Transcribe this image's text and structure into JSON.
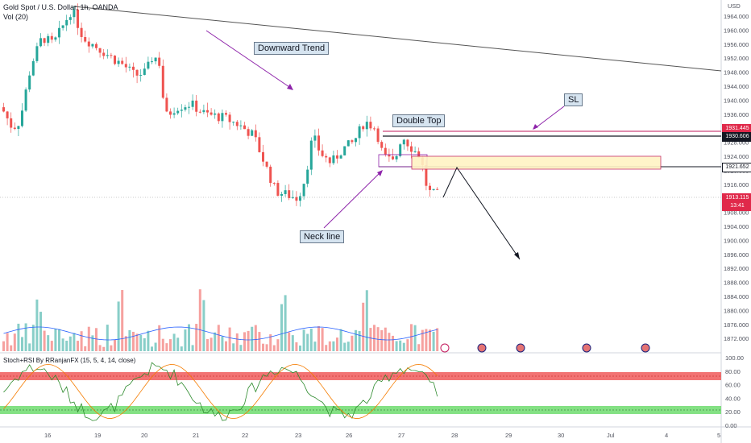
{
  "header": {
    "title": "Gold Spot / U.S. Dollar, 1h, OANDA",
    "volume_label": "Vol (20)",
    "indicator_label": "Stoch+RSI By RRanjanFX (15, 5, 4, 14, close)"
  },
  "currency": "USD",
  "annotations": {
    "downward_trend": "Downward Trend",
    "double_top": "Double Top",
    "neck_line": "Neck line",
    "sl": "SL"
  },
  "price_tags": {
    "sl_price": "1931.445",
    "top_price": "1930.606",
    "neck_price": "1921.652",
    "last_price": "1913.115",
    "countdown": "13:41"
  },
  "colors": {
    "bull": "#26a69a",
    "bear": "#ef5350",
    "arrow": "#8e24aa",
    "zone": "#fff3c4",
    "stoch_k": "#2e8b2e",
    "stoch_d": "#f57c00",
    "vol_ma": "#2962ff",
    "overbought_band": "#f05a5a",
    "oversold_band": "#6fdc6f"
  },
  "chart_data": [
    {
      "type": "candlestick",
      "title": "Gold Spot / U.S. Dollar, 1h, OANDA",
      "x_ticks": [
        "16",
        "19",
        "20",
        "21",
        "22",
        "23",
        "26",
        "27",
        "28",
        "29",
        "30",
        "Jul",
        "4",
        "5"
      ],
      "y_ticks": [
        "1964.000",
        "1960.000",
        "1956.000",
        "1952.000",
        "1948.000",
        "1944.000",
        "1940.000",
        "1936.000",
        "1932.000",
        "1928.000",
        "1924.000",
        "1920.000",
        "1916.000",
        "1912.000",
        "1908.000",
        "1904.000",
        "1900.000",
        "1896.000",
        "1892.000",
        "1888.000",
        "1884.000",
        "1880.000",
        "1876.000",
        "1872.000"
      ],
      "ylim": [
        1870,
        1966
      ],
      "close_path_points": [
        {
          "d": 0,
          "p": 1938
        },
        {
          "d": 3,
          "p": 1932
        },
        {
          "d": 5,
          "p": 1934
        },
        {
          "d": 8,
          "p": 1950
        },
        {
          "d": 11,
          "p": 1958
        },
        {
          "d": 14,
          "p": 1956
        },
        {
          "d": 17,
          "p": 1962
        },
        {
          "d": 19,
          "p": 1966
        },
        {
          "d": 22,
          "p": 1958
        },
        {
          "d": 26,
          "p": 1955
        },
        {
          "d": 30,
          "p": 1952
        },
        {
          "d": 33,
          "p": 1950
        },
        {
          "d": 36,
          "p": 1947
        },
        {
          "d": 39,
          "p": 1948
        },
        {
          "d": 41,
          "p": 1953
        },
        {
          "d": 43,
          "p": 1950
        },
        {
          "d": 44,
          "p": 1935
        },
        {
          "d": 47,
          "p": 1938
        },
        {
          "d": 51,
          "p": 1939
        },
        {
          "d": 55,
          "p": 1936
        },
        {
          "d": 60,
          "p": 1935
        },
        {
          "d": 64,
          "p": 1933
        },
        {
          "d": 68,
          "p": 1930
        },
        {
          "d": 71,
          "p": 1922
        },
        {
          "d": 74,
          "p": 1914
        },
        {
          "d": 77,
          "p": 1913
        },
        {
          "d": 80,
          "p": 1912
        },
        {
          "d": 82,
          "p": 1918
        },
        {
          "d": 84,
          "p": 1930
        },
        {
          "d": 86,
          "p": 1925
        },
        {
          "d": 89,
          "p": 1922
        },
        {
          "d": 92,
          "p": 1926
        },
        {
          "d": 95,
          "p": 1928
        },
        {
          "d": 98,
          "p": 1934
        },
        {
          "d": 101,
          "p": 1932
        },
        {
          "d": 103,
          "p": 1924
        },
        {
          "d": 106,
          "p": 1922
        },
        {
          "d": 108,
          "p": 1930
        },
        {
          "d": 111,
          "p": 1926
        },
        {
          "d": 113,
          "p": 1924
        },
        {
          "d": 115,
          "p": 1914
        },
        {
          "d": 117,
          "p": 1913
        }
      ],
      "levels": {
        "sl": 1931.445,
        "top": 1930.606,
        "neck": 1921.652,
        "last": 1913.115
      },
      "trendline": {
        "from": {
          "day": "16",
          "price": 1967
        },
        "to": {
          "day": "5",
          "price": 1947
        }
      },
      "zone": {
        "price_low": 1921,
        "price_high": 1925
      }
    },
    {
      "type": "bar",
      "title": "Vol (20)"
    },
    {
      "type": "line",
      "title": "Stoch+RSI By RRanjanFX (15, 5, 4, 14, close)",
      "y_ticks": [
        "100.00",
        "80.00",
        "60.00",
        "40.00",
        "20.00",
        "0.00"
      ],
      "ylim": [
        0,
        100
      ],
      "bands": {
        "overbought": [
          70,
          80
        ],
        "oversold": [
          20,
          30
        ]
      }
    }
  ]
}
